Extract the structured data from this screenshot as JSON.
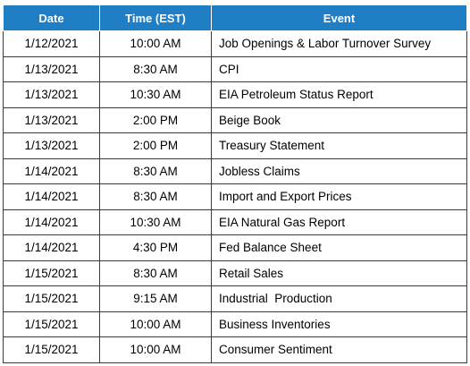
{
  "table": {
    "headers": [
      "Date",
      "Time (EST)",
      "Event"
    ],
    "rows": [
      [
        "1/12/2021",
        "10:00 AM",
        "Job Openings & Labor Turnover Survey"
      ],
      [
        "1/13/2021",
        "8:30 AM",
        "CPI"
      ],
      [
        "1/13/2021",
        "10:30 AM",
        "EIA Petroleum Status Report"
      ],
      [
        "1/13/2021",
        "2:00 PM",
        "Beige Book"
      ],
      [
        "1/13/2021",
        "2:00 PM",
        "Treasury Statement"
      ],
      [
        "1/14/2021",
        "8:30 AM",
        "Jobless Claims"
      ],
      [
        "1/14/2021",
        "8:30 AM",
        "Import and Export Prices"
      ],
      [
        "1/14/2021",
        "10:30 AM",
        "EIA Natural Gas Report"
      ],
      [
        "1/14/2021",
        "4:30 PM",
        "Fed Balance Sheet"
      ],
      [
        "1/15/2021",
        "8:30 AM",
        "Retail Sales"
      ],
      [
        "1/15/2021",
        "9:15 AM",
        "Industrial  Production"
      ],
      [
        "1/15/2021",
        "10:00 AM",
        "Business Inventories"
      ],
      [
        "1/15/2021",
        "10:00 AM",
        "Consumer Sentiment"
      ]
    ]
  },
  "colors": {
    "header_bg": "#1f7ec4",
    "header_text": "#ffffff",
    "border": "#3a3a3a"
  }
}
